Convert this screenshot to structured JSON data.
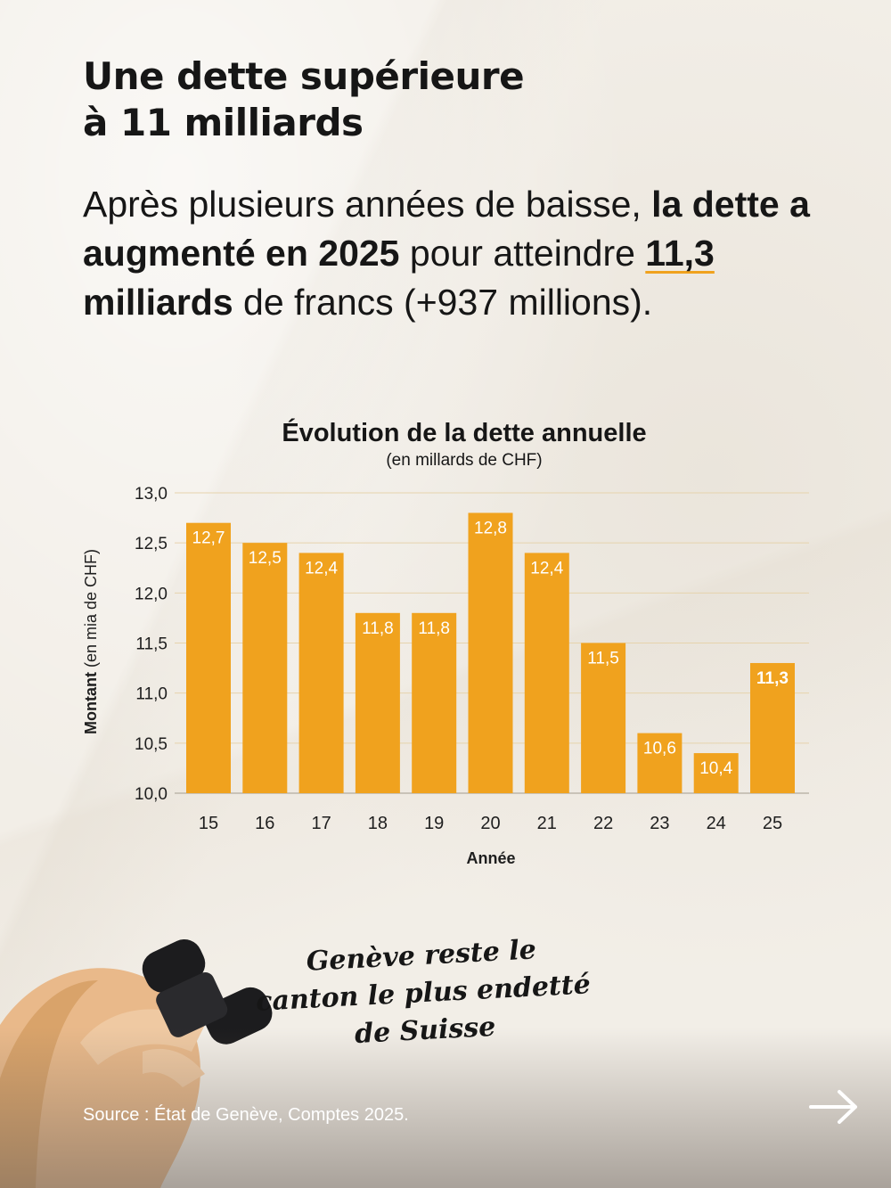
{
  "headline": {
    "line1": "Une dette supérieure",
    "line2_prefix": "à ",
    "line2_highlight": "11 milliards"
  },
  "intro": {
    "part1": "Après plusieurs années de baisse, ",
    "bold1": "la dette a augmenté en 2025",
    "part2": " pour atteindre ",
    "bold2": "11,3",
    "bold3": " milliards",
    "part3": " de francs (+937 millions)."
  },
  "chart_data": {
    "type": "bar",
    "title": "Évolution de la dette annuelle",
    "subtitle": "(en millards de CHF)",
    "xlabel": "Année",
    "ylabel_bold": "Montant",
    "ylabel_rest": " (en mia de CHF)",
    "categories": [
      "15",
      "16",
      "17",
      "18",
      "19",
      "20",
      "21",
      "22",
      "23",
      "24",
      "25"
    ],
    "values": [
      12.7,
      12.5,
      12.4,
      11.8,
      11.8,
      12.8,
      12.4,
      11.5,
      10.6,
      10.4,
      11.3
    ],
    "value_labels": [
      "12,7",
      "12,5",
      "12,4",
      "11,8",
      "11,8",
      "12,8",
      "12,4",
      "11,5",
      "10,6",
      "10,4",
      "11,3"
    ],
    "yticks": [
      "10,0",
      "10,5",
      "11,0",
      "11,5",
      "12,0",
      "12,5",
      "13,0"
    ],
    "ylim": [
      10,
      13
    ],
    "grid": true,
    "bar_color": "#f0a21e"
  },
  "quote": {
    "text": "Genève reste le canton le plus endetté de Suisse"
  },
  "source": {
    "text": "Source : État de Genève, Comptes 2025."
  },
  "icons": {
    "next": "arrow-right-icon"
  }
}
